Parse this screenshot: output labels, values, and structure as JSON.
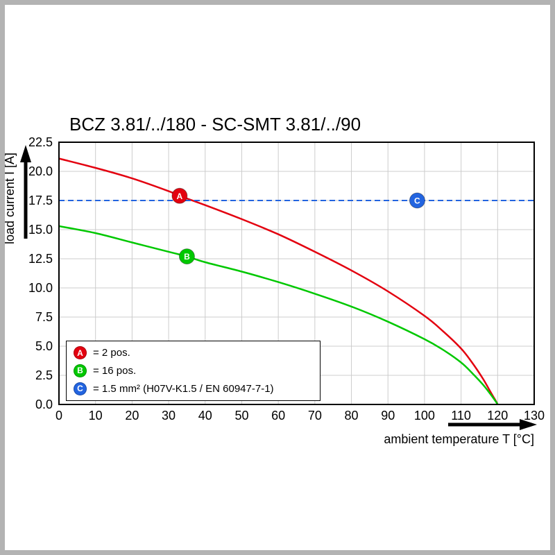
{
  "chart_data": {
    "type": "line",
    "title": "BCZ 3.81/../180 - SC-SMT 3.81/../90",
    "xlabel": "ambient temperature T [°C]",
    "ylabel": "load current I [A]",
    "xlim": [
      0,
      130
    ],
    "ylim": [
      0,
      22.5
    ],
    "grid": true,
    "legend_position": "lower left",
    "x_ticks": [
      0,
      10,
      20,
      30,
      40,
      50,
      60,
      70,
      80,
      90,
      100,
      110,
      120,
      130
    ],
    "y_ticks": [
      0,
      2.5,
      5,
      7.5,
      10,
      12.5,
      15,
      17.5,
      20,
      22.5
    ],
    "y_tick_labels": [
      "0.0",
      "2.5",
      "5.0",
      "7.5",
      "10.0",
      "12.5",
      "15.0",
      "17.5",
      "20.0",
      "22.5"
    ],
    "series": [
      {
        "name": "A",
        "label": "= 2 pos.",
        "color": "#e3000f",
        "points": [
          [
            0,
            21.1
          ],
          [
            10,
            20.3
          ],
          [
            20,
            19.4
          ],
          [
            30,
            18.3
          ],
          [
            33,
            17.9
          ],
          [
            40,
            17.1
          ],
          [
            50,
            15.9
          ],
          [
            60,
            14.6
          ],
          [
            70,
            13.1
          ],
          [
            80,
            11.5
          ],
          [
            90,
            9.7
          ],
          [
            100,
            7.6
          ],
          [
            105,
            6.3
          ],
          [
            110,
            4.8
          ],
          [
            113,
            3.6
          ],
          [
            116,
            2.2
          ],
          [
            118,
            1.1
          ],
          [
            119.5,
            0.3
          ],
          [
            120,
            0
          ]
        ],
        "marker": {
          "x": 33,
          "y": 17.9
        }
      },
      {
        "name": "B",
        "label": "= 16 pos.",
        "color": "#00c800",
        "points": [
          [
            0,
            15.3
          ],
          [
            10,
            14.7
          ],
          [
            20,
            13.9
          ],
          [
            30,
            13.1
          ],
          [
            35,
            12.7
          ],
          [
            40,
            12.2
          ],
          [
            50,
            11.4
          ],
          [
            60,
            10.5
          ],
          [
            70,
            9.5
          ],
          [
            80,
            8.4
          ],
          [
            90,
            7.1
          ],
          [
            100,
            5.6
          ],
          [
            105,
            4.7
          ],
          [
            110,
            3.6
          ],
          [
            113,
            2.7
          ],
          [
            116,
            1.7
          ],
          [
            118,
            0.9
          ],
          [
            119.5,
            0.25
          ],
          [
            120,
            0
          ]
        ],
        "marker": {
          "x": 35,
          "y": 12.7
        }
      },
      {
        "name": "C",
        "label": "= 1.5 mm² (H07V-K1.5 / EN 60947-7-1)",
        "color": "#2264e0",
        "style": "dashed-hline",
        "y": 17.5,
        "marker": {
          "x": 98,
          "y": 17.5
        }
      }
    ]
  }
}
